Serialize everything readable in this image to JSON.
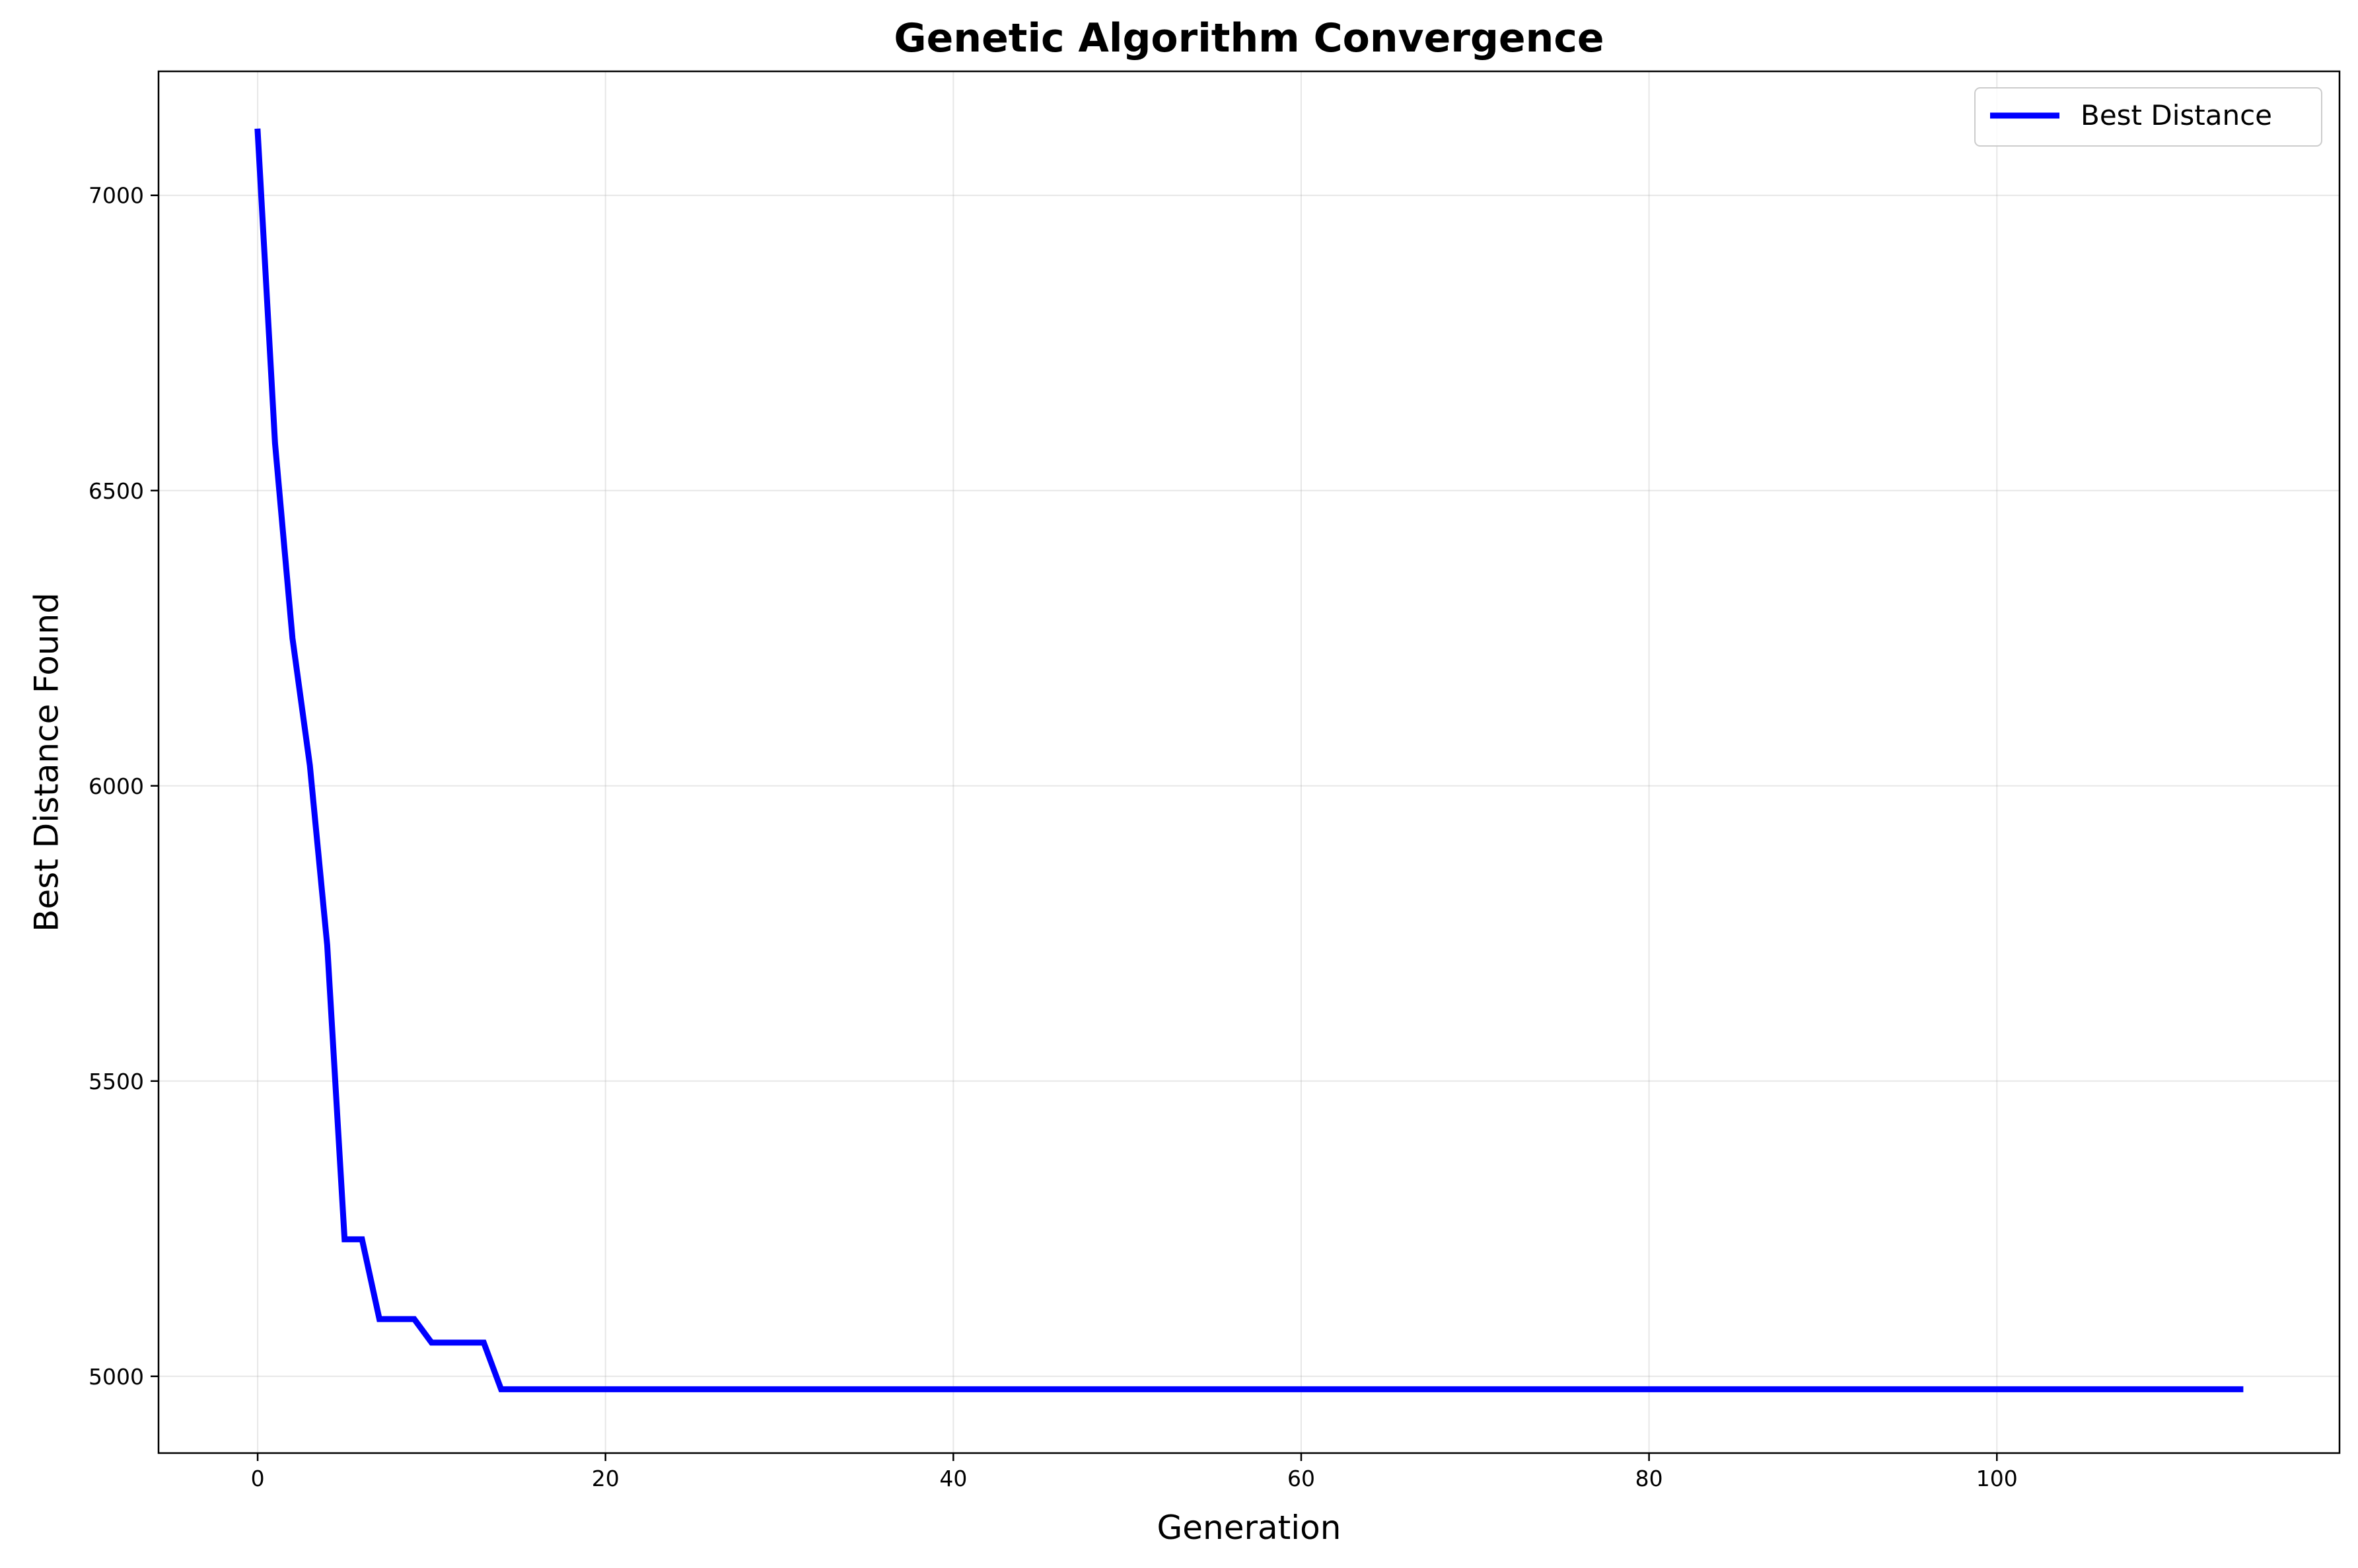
{
  "chart_data": {
    "type": "line",
    "title": "Genetic Algorithm Convergence",
    "xlabel": "Generation",
    "ylabel": "Best Distance Found",
    "xlim": [
      -5.7,
      119.7
    ],
    "ylim": [
      4870,
      7210
    ],
    "xticks": [
      0,
      20,
      40,
      60,
      80,
      100
    ],
    "yticks": [
      5000,
      5500,
      6000,
      6500,
      7000
    ],
    "grid": true,
    "legend_position": "upper-right",
    "series": [
      {
        "name": "Best Distance",
        "color": "#0000ff",
        "x": [
          0,
          1,
          2,
          3,
          4,
          5,
          6,
          7,
          8,
          9,
          10,
          11,
          12,
          13,
          14,
          114
        ],
        "y": [
          7108,
          6580,
          6250,
          6035,
          5730,
          5232,
          5232,
          5097,
          5097,
          5097,
          5057,
          5057,
          5057,
          5057,
          4978,
          4978
        ]
      }
    ]
  }
}
